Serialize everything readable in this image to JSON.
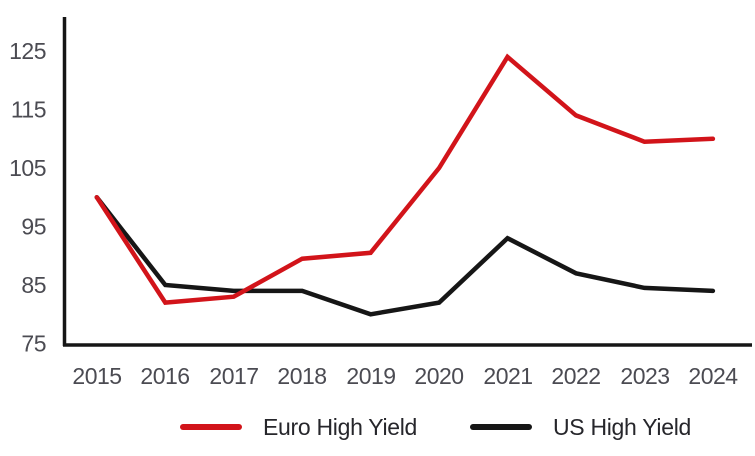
{
  "chart_data": {
    "type": "line",
    "title": "",
    "categories": [
      "2015",
      "2016",
      "2017",
      "2018",
      "2019",
      "2020",
      "2021",
      "2022",
      "2023",
      "2024"
    ],
    "series": [
      {
        "name": "Euro High Yield",
        "color": "#d2141a",
        "values": [
          100,
          82,
          83,
          89.5,
          90.5,
          105,
          124,
          114,
          109.5,
          110
        ]
      },
      {
        "name": "US High Yield",
        "color": "#161616",
        "values": [
          100,
          85,
          84,
          84,
          80,
          82,
          93,
          87,
          84.5,
          84
        ]
      }
    ],
    "yticks": [
      125,
      115,
      105,
      95,
      85,
      75
    ],
    "ylim": [
      75,
      131
    ],
    "xlabel": "",
    "ylabel": "",
    "grid": false,
    "legend_position": "bottom"
  },
  "colors": {
    "euro_line": "#d2141a",
    "us_line": "#161616",
    "axis": "#161616",
    "tick_label": "#4b4b52",
    "legend_text": "#26262b",
    "background": "#ffffff"
  }
}
